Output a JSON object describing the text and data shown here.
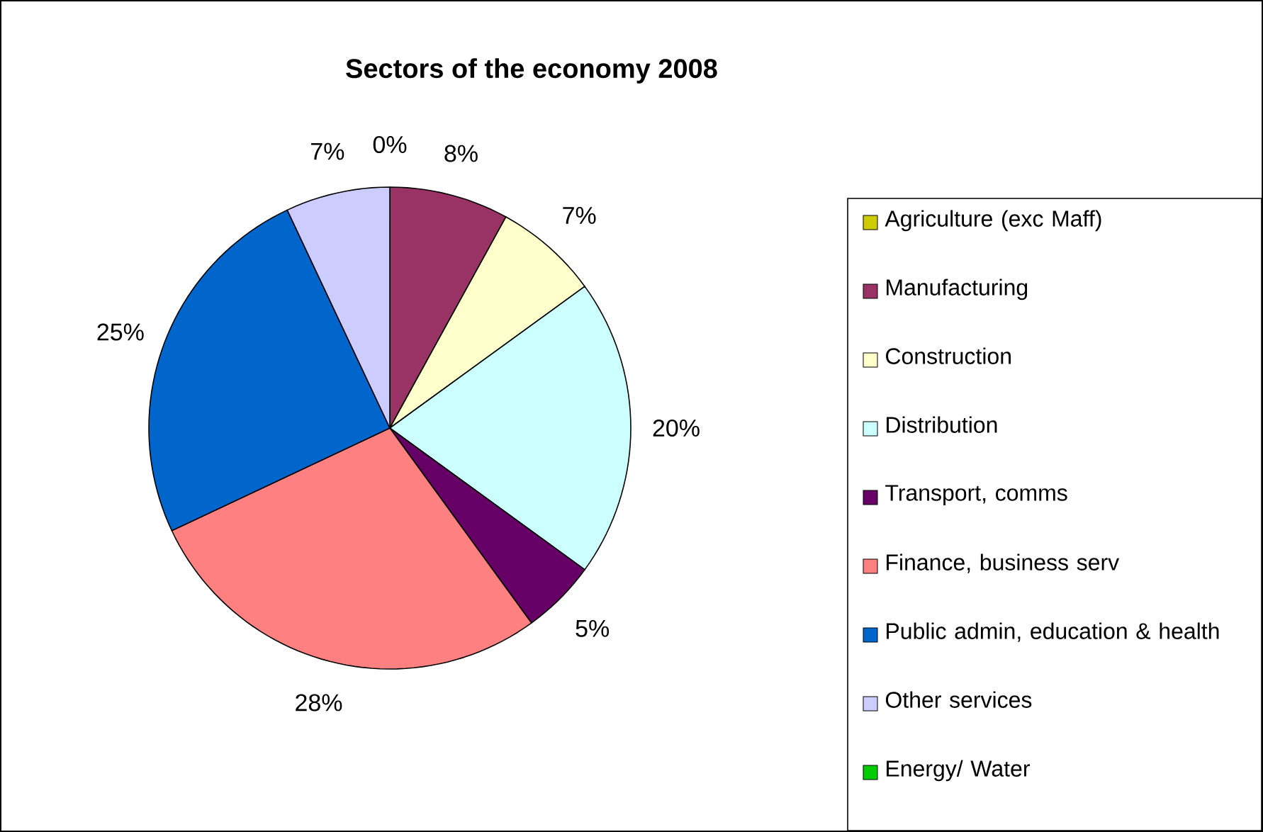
{
  "chart_data": {
    "type": "pie",
    "title": "Sectors of the economy 2008",
    "categories": [
      "Agriculture (exc Maff)",
      "Manufacturing",
      "Construction",
      "Distribution",
      "Transport, comms",
      "Finance, business serv",
      "Public admin, education & health",
      "Other services",
      "Energy/ Water"
    ],
    "values": [
      0,
      8,
      7,
      20,
      5,
      28,
      25,
      7,
      0
    ],
    "value_labels": [
      "0%",
      "8%",
      "7%",
      "20%",
      "5%",
      "28%",
      "25%",
      "7%",
      null
    ],
    "colors": [
      "#cccc00",
      "#993366",
      "#ffffcc",
      "#ccffff",
      "#660066",
      "#ff8080",
      "#0066cc",
      "#ccccff",
      "#00cc00"
    ],
    "legend": "right"
  }
}
